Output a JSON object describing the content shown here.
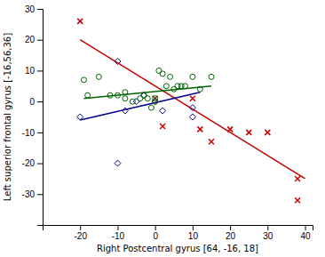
{
  "chart_data": {
    "type": "scatter",
    "xlabel": "Right Postcentral gyrus [64, -16, 18]",
    "ylabel": "Left superior frontal gyrus [-16,56,36]",
    "xlim": [
      -30,
      42
    ],
    "ylim": [
      -40,
      30
    ],
    "xticks": [
      -20,
      -10,
      0,
      10,
      20,
      30,
      40
    ],
    "yticks": [
      -30,
      -20,
      -10,
      0,
      10,
      20,
      30
    ],
    "grid": false,
    "series": [
      {
        "type": "line",
        "color": "#c80000",
        "x": [
          -20,
          40
        ],
        "values": [
          20,
          -25
        ]
      },
      {
        "type": "line",
        "color": "#00008b",
        "x": [
          -20,
          12
        ],
        "values": [
          -6,
          3
        ]
      },
      {
        "type": "line",
        "color": "#006400",
        "x": [
          -19,
          15
        ],
        "values": [
          1,
          5
        ]
      },
      {
        "type": "scatter",
        "marker": "x",
        "color": "#c80000",
        "x": [
          -20,
          0,
          2,
          10,
          12,
          15,
          20,
          25,
          30,
          38,
          38
        ],
        "values": [
          26,
          1,
          -8,
          1,
          -9,
          -13,
          -9,
          -10,
          -10,
          -25,
          -32
        ]
      },
      {
        "type": "scatter",
        "marker": "diamond",
        "color": "#00008b",
        "x": [
          -20,
          -10,
          -10,
          -8,
          -5,
          -3,
          0,
          2,
          10,
          10
        ],
        "values": [
          -5,
          13,
          -20,
          -3,
          0,
          2,
          0,
          -3,
          -2,
          -5
        ]
      },
      {
        "type": "scatter",
        "marker": "circle",
        "color": "#006400",
        "x": [
          -19,
          -18,
          -15,
          -12,
          -10,
          -8,
          -8,
          -6,
          -4,
          -3,
          -2,
          -1,
          0,
          0,
          1,
          2,
          3,
          4,
          5,
          6,
          7,
          8,
          10,
          12,
          15
        ],
        "values": [
          7,
          2,
          8,
          2,
          2,
          3,
          1,
          0,
          1,
          2,
          1,
          -2,
          0,
          1,
          10,
          9,
          5,
          8,
          4,
          5,
          5,
          5,
          8,
          4,
          8
        ]
      }
    ]
  }
}
